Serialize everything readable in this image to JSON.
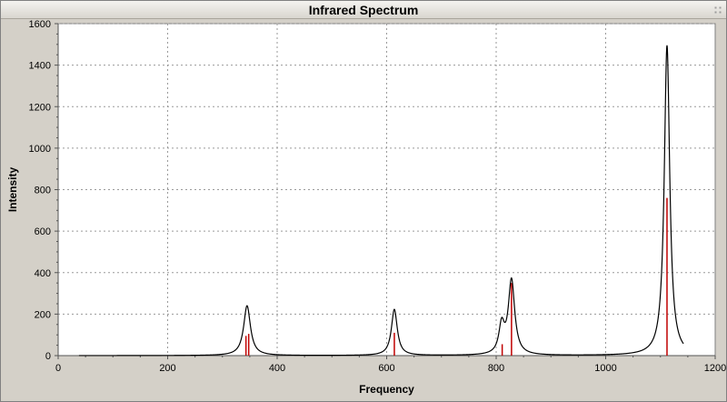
{
  "window": {
    "title": "Infrared Spectrum"
  },
  "chart_data": {
    "type": "line",
    "title": "Infrared Spectrum",
    "xlabel": "Frequency",
    "ylabel": "Intensity",
    "xlim": [
      0,
      1200
    ],
    "ylim": [
      0,
      1600
    ],
    "xticks": [
      0,
      200,
      400,
      600,
      800,
      1000,
      1200
    ],
    "yticks": [
      0,
      200,
      400,
      600,
      800,
      1000,
      1200,
      1400,
      1600
    ],
    "grid": true,
    "colors": {
      "background": "#ffffff",
      "frame": "#d4d0c8",
      "grid": "#9a9a9a",
      "spectrum": "#000000",
      "sticks": "#c00000"
    },
    "spectrum_range": [
      38,
      1142
    ],
    "peaks": [
      {
        "center": 345,
        "height": 240,
        "width": 7.5
      },
      {
        "center": 614,
        "height": 222,
        "width": 6.5
      },
      {
        "center": 810,
        "height": 135,
        "width": 6
      },
      {
        "center": 828,
        "height": 360,
        "width": 7
      },
      {
        "center": 1112,
        "height": 1495,
        "width": 6
      }
    ],
    "sticks": [
      {
        "x": 343,
        "y": 95
      },
      {
        "x": 348,
        "y": 105
      },
      {
        "x": 614,
        "y": 110
      },
      {
        "x": 811,
        "y": 55
      },
      {
        "x": 828,
        "y": 350
      },
      {
        "x": 1112,
        "y": 760
      }
    ]
  }
}
